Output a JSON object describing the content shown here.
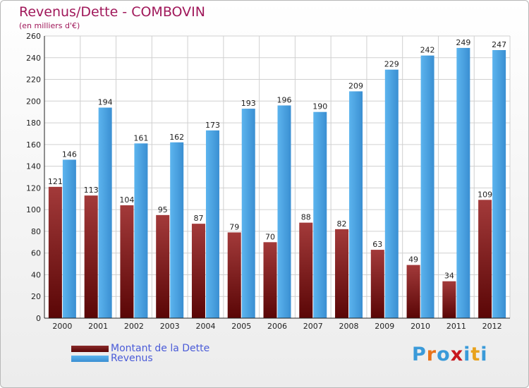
{
  "chart_data": {
    "type": "bar",
    "title": "Revenus/Dette - COMBOVIN",
    "subtitle": "(en milliers d'€)",
    "categories": [
      "2000",
      "2001",
      "2002",
      "2003",
      "2004",
      "2005",
      "2006",
      "2007",
      "2008",
      "2009",
      "2010",
      "2011",
      "2012"
    ],
    "series": [
      {
        "name": "Montant de la Dette",
        "values": [
          121,
          113,
          104,
          95,
          87,
          79,
          70,
          88,
          82,
          63,
          49,
          34,
          109
        ],
        "color": "#7a1a1a"
      },
      {
        "name": "Revenus",
        "values": [
          146,
          194,
          161,
          162,
          173,
          193,
          196,
          190,
          209,
          229,
          242,
          249,
          247
        ],
        "color": "#4aa3e2"
      }
    ],
    "ylim": [
      0,
      260
    ],
    "yticks": [
      0,
      20,
      40,
      60,
      80,
      100,
      120,
      140,
      160,
      180,
      200,
      220,
      240,
      260
    ],
    "grid": true,
    "legend_position": "bottom-left"
  },
  "logo": {
    "text": "Proxiti",
    "colors": [
      "#3a9ad9",
      "#e8731c",
      "#3a9ad9",
      "#c8171e",
      "#3a9ad9",
      "#e8a21c",
      "#3a9ad9"
    ]
  }
}
